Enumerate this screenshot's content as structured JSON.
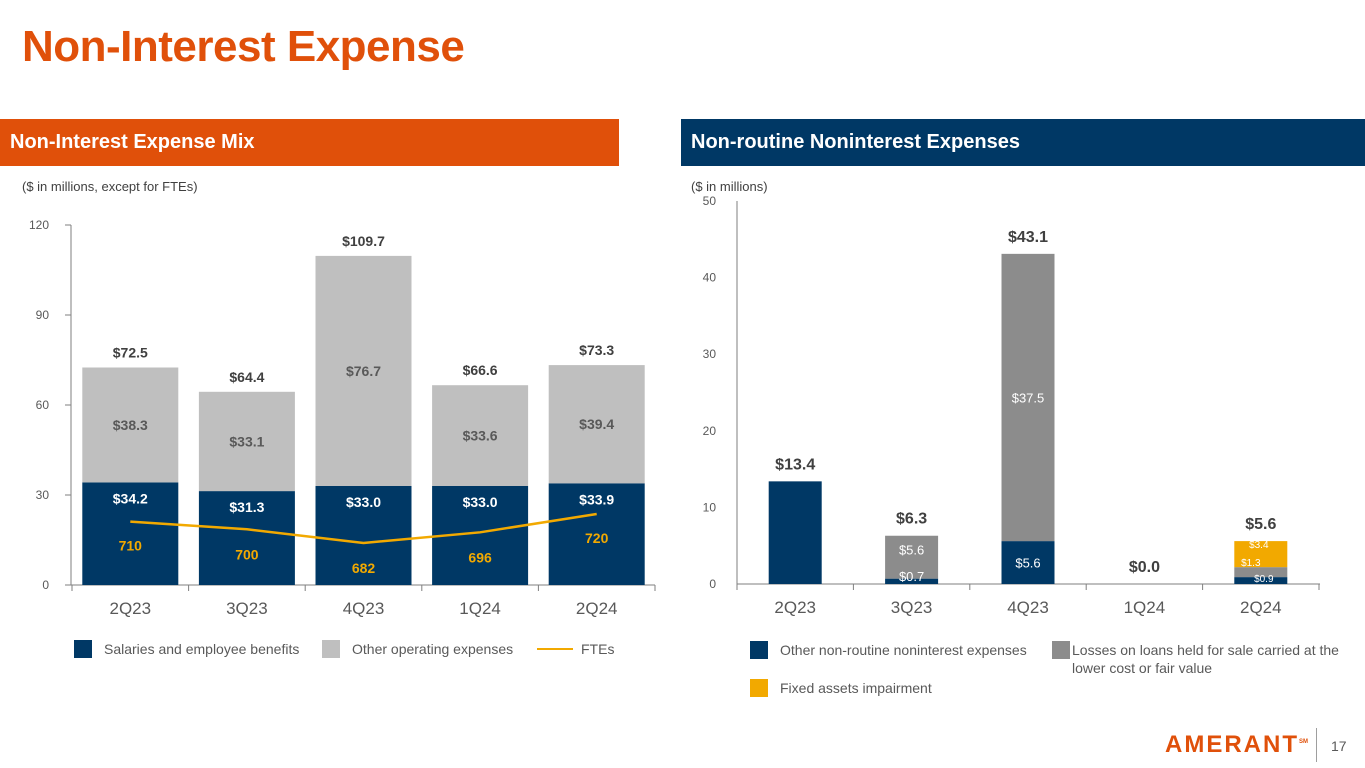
{
  "page": {
    "title": "Non-Interest Expense",
    "page_number": "17",
    "logo_text": "AMERANT",
    "logo_mark": "SM"
  },
  "colors": {
    "orange": "#E0500A",
    "navy": "#003865",
    "light_gray": "#BFBFBF",
    "mid_gray": "#8C8C8C",
    "gold": "#F2A900"
  },
  "left_panel": {
    "header": "Non-Interest Expense Mix",
    "note": "($ in millions, except for FTEs)",
    "legend": [
      "Salaries and employee benefits",
      "Other operating expenses",
      "FTEs"
    ]
  },
  "right_panel": {
    "header": "Non-routine Noninterest Expenses",
    "note": "($ in millions)",
    "legend": [
      "Other non-routine noninterest expenses",
      "Losses on loans held for sale carried at the lower cost or fair value",
      "Fixed assets impairment"
    ]
  },
  "chart_data": [
    {
      "type": "bar",
      "stacked": true,
      "title": "Non-Interest Expense Mix",
      "categories": [
        "2Q23",
        "3Q23",
        "4Q23",
        "1Q24",
        "2Q24"
      ],
      "ylim": [
        0,
        120
      ],
      "yticks": [
        0,
        30,
        60,
        90,
        120
      ],
      "series": [
        {
          "name": "Salaries and employee benefits",
          "values": [
            34.2,
            31.3,
            33.0,
            33.0,
            33.9
          ],
          "labels": [
            "$34.2",
            "$31.3",
            "$33.0",
            "$33.0",
            "$33.9"
          ]
        },
        {
          "name": "Other operating expenses",
          "values": [
            38.3,
            33.1,
            76.7,
            33.6,
            39.4
          ],
          "labels": [
            "$38.3",
            "$33.1",
            "$76.7",
            "$33.6",
            "$39.4"
          ]
        }
      ],
      "totals": [
        "$72.5",
        "$64.4",
        "$109.7",
        "$66.6",
        "$73.3"
      ],
      "line": {
        "name": "FTEs",
        "values": [
          710,
          700,
          682,
          696,
          720
        ],
        "labels": [
          "710",
          "700",
          "682",
          "696",
          "720"
        ],
        "ylim": [
          600,
          820
        ]
      }
    },
    {
      "type": "bar",
      "stacked": true,
      "title": "Non-routine Noninterest Expenses",
      "categories": [
        "2Q23",
        "3Q23",
        "4Q23",
        "1Q24",
        "2Q24"
      ],
      "ylim": [
        0,
        50
      ],
      "yticks": [
        0,
        10,
        20,
        30,
        40,
        50
      ],
      "series": [
        {
          "name": "Other non-routine noninterest expenses",
          "values": [
            13.4,
            0.7,
            5.6,
            0.0,
            0.9
          ],
          "labels": [
            "",
            "$0.7",
            "$5.6",
            "",
            "$0.9"
          ]
        },
        {
          "name": "Losses on loans held for sale carried at the lower cost or fair value",
          "values": [
            0,
            5.6,
            37.5,
            0,
            1.3
          ],
          "labels": [
            "",
            "$5.6",
            "$37.5",
            "",
            "$1.3"
          ]
        },
        {
          "name": "Fixed assets impairment",
          "values": [
            0,
            0,
            0,
            0,
            3.4
          ],
          "labels": [
            "",
            "",
            "",
            "",
            "$3.4"
          ]
        }
      ],
      "totals": [
        "$13.4",
        "$6.3",
        "$43.1",
        "$0.0",
        "$5.6"
      ]
    }
  ]
}
